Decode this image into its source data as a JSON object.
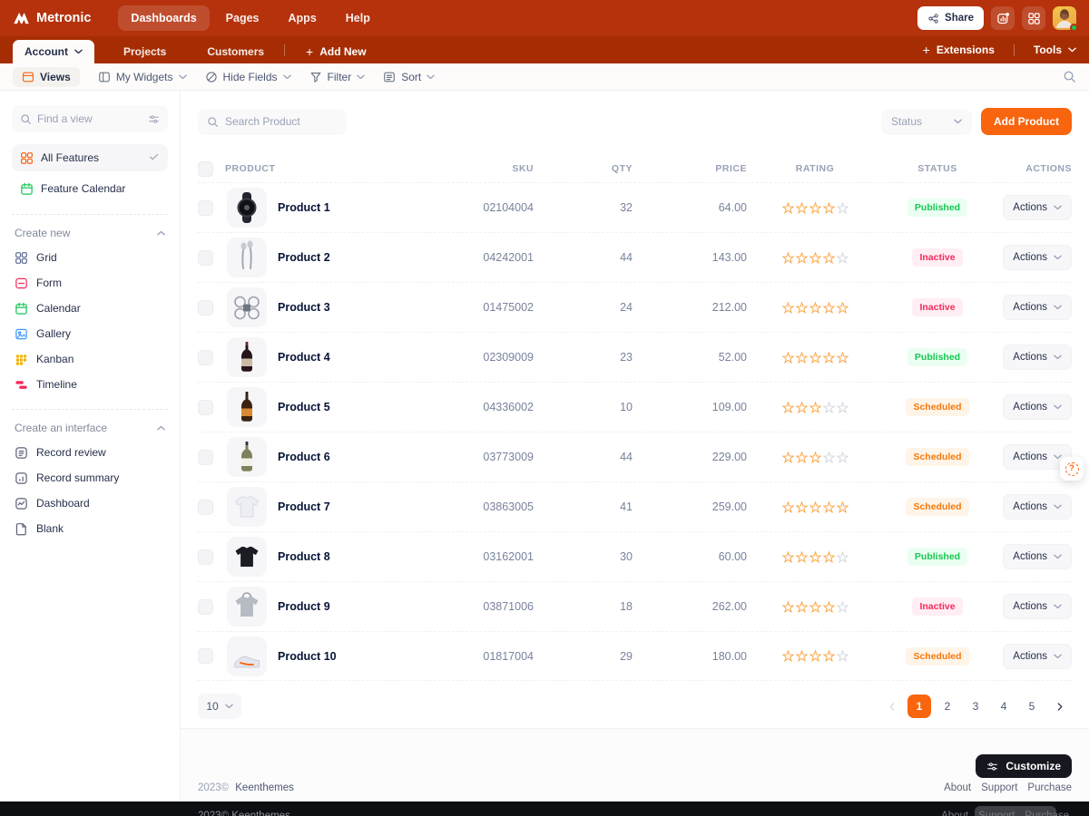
{
  "header": {
    "brand": "Metronic",
    "nav": [
      {
        "label": "Dashboards",
        "active": true
      },
      {
        "label": "Pages",
        "active": false
      },
      {
        "label": "Apps",
        "active": false
      },
      {
        "label": "Help",
        "active": false
      }
    ],
    "share_label": "Share"
  },
  "tabs_bar": {
    "tabs": [
      {
        "label": "Account",
        "active": true
      },
      {
        "label": "Projects",
        "active": false
      },
      {
        "label": "Customers",
        "active": false
      }
    ],
    "add_new_label": "Add New",
    "extensions_label": "Extensions",
    "tools_label": "Tools"
  },
  "toolbar": {
    "buttons": [
      {
        "label": "Views",
        "icon": "views",
        "pill": true,
        "chevron": false
      },
      {
        "label": "My Widgets",
        "icon": "widgets",
        "pill": false,
        "chevron": true
      },
      {
        "label": "Hide Fields",
        "icon": "hide",
        "pill": false,
        "chevron": true
      },
      {
        "label": "Filter",
        "icon": "filter",
        "pill": false,
        "chevron": true
      },
      {
        "label": "Sort",
        "icon": "sort",
        "pill": false,
        "chevron": true
      }
    ]
  },
  "sidebar": {
    "search_placeholder": "Find a view",
    "views": [
      {
        "label": "All Features",
        "icon": "all-features",
        "color": "#F8650E",
        "selected": true
      },
      {
        "label": "Feature Calendar",
        "icon": "calendar",
        "color": "#17C653",
        "selected": false
      }
    ],
    "sections": [
      {
        "title": "Create new",
        "items": [
          {
            "label": "Grid",
            "icon": "grid",
            "color": "#5E6B92"
          },
          {
            "label": "Form",
            "icon": "form",
            "color": "#F8285A"
          },
          {
            "label": "Calendar",
            "icon": "calendar",
            "color": "#17C653"
          },
          {
            "label": "Gallery",
            "icon": "gallery",
            "color": "#3E97FF"
          },
          {
            "label": "Kanban",
            "icon": "kanban",
            "color": "#F6B100"
          },
          {
            "label": "Timeline",
            "icon": "timeline",
            "color": "#F8285A"
          }
        ]
      },
      {
        "title": "Create an interface",
        "items": [
          {
            "label": "Record review",
            "icon": "record-review",
            "color": "#5E6278"
          },
          {
            "label": "Record summary",
            "icon": "record-summary",
            "color": "#5E6278"
          },
          {
            "label": "Dashboard",
            "icon": "dashboard",
            "color": "#5E6278"
          },
          {
            "label": "Blank",
            "icon": "blank",
            "color": "#5E6278"
          }
        ]
      }
    ]
  },
  "content": {
    "search_placeholder": "Search Product",
    "status_filter_label": "Status",
    "add_product_label": "Add Product",
    "columns": [
      "PRODUCT",
      "SKU",
      "QTY",
      "PRICE",
      "RATING",
      "STATUS",
      "ACTIONS"
    ],
    "actions_label": "Actions",
    "rating_max": 5,
    "products": [
      {
        "name": "Product 1",
        "sku": "02104004",
        "qty": "32",
        "price": "64.00",
        "rating": 4,
        "status": "Published",
        "image": "watch"
      },
      {
        "name": "Product 2",
        "sku": "04242001",
        "qty": "44",
        "price": "143.00",
        "rating": 4,
        "status": "Inactive",
        "image": "earbuds"
      },
      {
        "name": "Product 3",
        "sku": "01475002",
        "qty": "24",
        "price": "212.00",
        "rating": 5,
        "status": "Inactive",
        "image": "drone"
      },
      {
        "name": "Product 4",
        "sku": "02309009",
        "qty": "23",
        "price": "52.00",
        "rating": 5,
        "status": "Published",
        "image": "bottle-dark"
      },
      {
        "name": "Product 5",
        "sku": "04336002",
        "qty": "10",
        "price": "109.00",
        "rating": 3,
        "status": "Scheduled",
        "image": "bottle-amber"
      },
      {
        "name": "Product 6",
        "sku": "03773009",
        "qty": "44",
        "price": "229.00",
        "rating": 3,
        "status": "Scheduled",
        "image": "bottle-light"
      },
      {
        "name": "Product 7",
        "sku": "03863005",
        "qty": "41",
        "price": "259.00",
        "rating": 5,
        "status": "Scheduled",
        "image": "shirt"
      },
      {
        "name": "Product 8",
        "sku": "03162001",
        "qty": "30",
        "price": "60.00",
        "rating": 4,
        "status": "Published",
        "image": "jacket"
      },
      {
        "name": "Product 9",
        "sku": "03871006",
        "qty": "18",
        "price": "262.00",
        "rating": 4,
        "status": "Inactive",
        "image": "hoodie"
      },
      {
        "name": "Product 10",
        "sku": "01817004",
        "qty": "29",
        "price": "180.00",
        "rating": 4,
        "status": "Scheduled",
        "image": "sneaker"
      }
    ],
    "status_colors": {
      "Published": {
        "text": "#17C653",
        "bg": "#EAFFF1"
      },
      "Inactive": {
        "text": "#F8285A",
        "bg": "#FFEEF3"
      },
      "Scheduled": {
        "text": "#F6780A",
        "bg": "#FFF4E8"
      }
    },
    "pagination": {
      "per_page": "10",
      "pages": [
        "1",
        "2",
        "3",
        "4",
        "5"
      ],
      "active_page": "1"
    }
  },
  "footer": {
    "copyright": "2023©",
    "company": "Keenthemes",
    "customize_label": "Customize",
    "links": [
      "About",
      "Support",
      "Purchase"
    ]
  },
  "theme": {
    "accent": "#F8650E",
    "header_bg": "#B5320C",
    "tabs_bg": "#A62D03"
  }
}
